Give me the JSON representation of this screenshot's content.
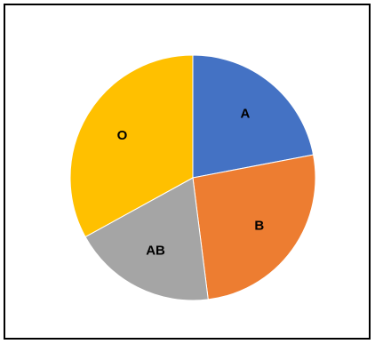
{
  "chart_data": {
    "type": "pie",
    "title": "",
    "categories": [
      "A",
      "B",
      "AB",
      "O"
    ],
    "values": [
      22,
      26,
      19,
      33
    ],
    "colors": [
      "#4472C4",
      "#ED7D31",
      "#A5A5A5",
      "#FFC000"
    ],
    "start_angle_deg": 0,
    "direction": "clockwise",
    "legend": "none",
    "data_labels": "category-inside"
  }
}
